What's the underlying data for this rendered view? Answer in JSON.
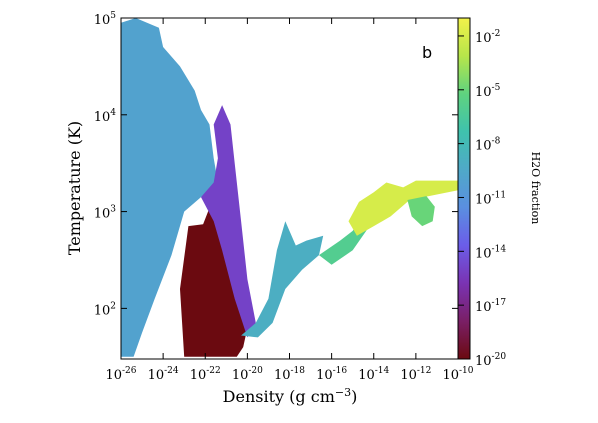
{
  "chart_data": {
    "type": "heatmap",
    "panel_label": "b",
    "xlabel": "Density (g cm",
    "xlabel_sup": "−3",
    "xlabel_close": ")",
    "ylabel": "Temperature (K)",
    "colorbar_label": "H2O fraction",
    "x_scale": "log",
    "y_scale": "log",
    "xlim_log10": [
      -26,
      -10
    ],
    "ylim_log10": [
      1.477,
      5
    ],
    "x_ticks": [
      {
        "mantissa": "10",
        "exp": "-26",
        "log10": -26
      },
      {
        "mantissa": "10",
        "exp": "-24",
        "log10": -24
      },
      {
        "mantissa": "10",
        "exp": "-22",
        "log10": -22
      },
      {
        "mantissa": "10",
        "exp": "-20",
        "log10": -20
      },
      {
        "mantissa": "10",
        "exp": "-18",
        "log10": -18
      },
      {
        "mantissa": "10",
        "exp": "-16",
        "log10": -16
      },
      {
        "mantissa": "10",
        "exp": "-14",
        "log10": -14
      },
      {
        "mantissa": "10",
        "exp": "-12",
        "log10": -12
      },
      {
        "mantissa": "10",
        "exp": "-10",
        "log10": -10
      }
    ],
    "y_ticks": [
      {
        "mantissa": "10",
        "exp": "2",
        "log10": 2
      },
      {
        "mantissa": "10",
        "exp": "3",
        "log10": 3
      },
      {
        "mantissa": "10",
        "exp": "4",
        "log10": 4
      },
      {
        "mantissa": "10",
        "exp": "5",
        "log10": 5
      }
    ],
    "colorbar_scale": "log",
    "colorbar_range_log10": [
      -20,
      -1
    ],
    "colorbar_ticks": [
      {
        "mantissa": "10",
        "exp": "-2",
        "log10": -2
      },
      {
        "mantissa": "10",
        "exp": "-5",
        "log10": -5
      },
      {
        "mantissa": "10",
        "exp": "-8",
        "log10": -8
      },
      {
        "mantissa": "10",
        "exp": "-11",
        "log10": -11
      },
      {
        "mantissa": "10",
        "exp": "-14",
        "log10": -14
      },
      {
        "mantissa": "10",
        "exp": "-17",
        "log10": -17
      },
      {
        "mantissa": "10",
        "exp": "-20",
        "log10": -20
      }
    ],
    "colormap": [
      "#6b0a10",
      "#7a1f66",
      "#7a33b3",
      "#6b5de8",
      "#5a8fe0",
      "#4fa9c8",
      "#3fc2ad",
      "#5fd37f",
      "#b7e64a",
      "#f2f24a"
    ],
    "regions": [
      {
        "name": "diffuse-warm-gas",
        "log10_h2o": -10,
        "polygon": [
          [
            -26,
            4.95
          ],
          [
            -25.3,
            5.0
          ],
          [
            -24.2,
            4.9
          ],
          [
            -24.0,
            4.7
          ],
          [
            -23.2,
            4.5
          ],
          [
            -22.5,
            4.25
          ],
          [
            -22.2,
            4.05
          ],
          [
            -21.8,
            3.9
          ],
          [
            -21.6,
            3.55
          ],
          [
            -21.4,
            3.3
          ],
          [
            -22.2,
            3.15
          ],
          [
            -23.0,
            3.0
          ],
          [
            -23.6,
            2.55
          ],
          [
            -24.4,
            2.1
          ],
          [
            -25.0,
            1.75
          ],
          [
            -25.4,
            1.5
          ],
          [
            -26,
            1.5
          ]
        ]
      },
      {
        "name": "dense-cold-gas",
        "log10_h2o": -20,
        "polygon": [
          [
            -22.8,
            2.85
          ],
          [
            -22.1,
            2.87
          ],
          [
            -21.6,
            3.15
          ],
          [
            -21.2,
            3.45
          ],
          [
            -20.8,
            3.7
          ],
          [
            -20.6,
            3.2
          ],
          [
            -20.6,
            2.8
          ],
          [
            -20.3,
            2.3
          ],
          [
            -19.9,
            1.9
          ],
          [
            -20.2,
            1.6
          ],
          [
            -20.5,
            1.5
          ],
          [
            -23.0,
            1.5
          ],
          [
            -23.2,
            2.2
          ]
        ]
      },
      {
        "name": "molecular-ridge",
        "log10_h2o": -15,
        "polygon": [
          [
            -22.2,
            3.15
          ],
          [
            -21.6,
            3.3
          ],
          [
            -21.4,
            3.55
          ],
          [
            -21.6,
            3.9
          ],
          [
            -21.2,
            4.1
          ],
          [
            -20.8,
            3.9
          ],
          [
            -20.6,
            3.5
          ],
          [
            -20.3,
            2.9
          ],
          [
            -20.0,
            2.3
          ],
          [
            -19.6,
            1.85
          ],
          [
            -20.0,
            1.7
          ],
          [
            -20.6,
            2.1
          ],
          [
            -21.2,
            2.6
          ],
          [
            -21.6,
            2.9
          ]
        ]
      },
      {
        "name": "collapse-track",
        "log10_h2o": -9,
        "polygon": [
          [
            -20.3,
            1.72
          ],
          [
            -19.5,
            1.7
          ],
          [
            -18.8,
            1.85
          ],
          [
            -18.2,
            2.2
          ],
          [
            -17.4,
            2.4
          ],
          [
            -16.6,
            2.55
          ],
          [
            -16.4,
            2.75
          ],
          [
            -17.2,
            2.7
          ],
          [
            -17.7,
            2.65
          ],
          [
            -18.2,
            2.9
          ],
          [
            -18.6,
            2.6
          ],
          [
            -19.0,
            2.1
          ],
          [
            -19.6,
            1.85
          ]
        ]
      },
      {
        "name": "warming-track",
        "log10_h2o": -6,
        "polygon": [
          [
            -16.6,
            2.55
          ],
          [
            -15.6,
            2.7
          ],
          [
            -15.0,
            2.8
          ],
          [
            -14.3,
            3.05
          ],
          [
            -13.5,
            3.25
          ],
          [
            -13.6,
            3.05
          ],
          [
            -14.2,
            2.85
          ],
          [
            -15.0,
            2.6
          ],
          [
            -16.0,
            2.45
          ]
        ]
      },
      {
        "name": "hot-core",
        "log10_h2o": -2,
        "polygon": [
          [
            -15.2,
            2.9
          ],
          [
            -14.7,
            3.1
          ],
          [
            -14.0,
            3.2
          ],
          [
            -13.4,
            3.3
          ],
          [
            -12.6,
            3.25
          ],
          [
            -12.0,
            3.32
          ],
          [
            -10.0,
            3.32
          ],
          [
            -10.0,
            3.22
          ],
          [
            -12.3,
            3.12
          ],
          [
            -13.2,
            2.95
          ],
          [
            -14.0,
            2.85
          ],
          [
            -14.8,
            2.75
          ]
        ]
      },
      {
        "name": "hot-core-blob",
        "log10_h2o": -5,
        "polygon": [
          [
            -12.4,
            3.12
          ],
          [
            -11.5,
            3.16
          ],
          [
            -11.1,
            3.05
          ],
          [
            -11.2,
            2.9
          ],
          [
            -11.7,
            2.85
          ],
          [
            -12.2,
            2.95
          ]
        ]
      }
    ]
  }
}
